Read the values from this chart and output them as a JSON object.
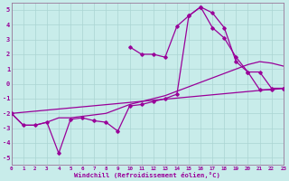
{
  "xlabel": "Windchill (Refroidissement éolien,°C)",
  "background_color": "#c8ecea",
  "grid_color": "#aad4d2",
  "line_color": "#990099",
  "spine_color": "#997799",
  "x_ticks": [
    0,
    1,
    2,
    3,
    4,
    5,
    6,
    7,
    8,
    9,
    10,
    11,
    12,
    13,
    14,
    15,
    16,
    17,
    18,
    19,
    20,
    21,
    22,
    23
  ],
  "y_ticks": [
    -5,
    -4,
    -3,
    -2,
    -1,
    0,
    1,
    2,
    3,
    4,
    5
  ],
  "xlim": [
    0,
    23
  ],
  "ylim": [
    -5.5,
    5.5
  ],
  "series": [
    {
      "x": [
        0,
        23
      ],
      "y": [
        -2.0,
        -0.3
      ],
      "marker": false,
      "linewidth": 0.9
    },
    {
      "x": [
        0,
        1,
        2,
        3,
        4,
        5,
        6,
        7,
        8,
        9,
        10,
        11,
        12,
        13,
        14,
        15,
        16,
        17,
        18,
        19,
        20,
        21,
        22,
        23
      ],
      "y": [
        -2.0,
        -2.8,
        -2.8,
        -2.6,
        -2.3,
        -2.3,
        -2.2,
        -2.1,
        -2.0,
        -1.7,
        -1.4,
        -1.2,
        -1.0,
        -0.8,
        -0.5,
        -0.2,
        0.1,
        0.4,
        0.7,
        1.0,
        1.3,
        1.5,
        1.4,
        1.2
      ],
      "marker": false,
      "linewidth": 0.9
    },
    {
      "x": [
        0,
        1,
        2,
        3,
        4,
        5,
        6,
        7,
        8,
        9,
        10,
        11,
        12,
        13,
        14,
        15,
        16,
        17,
        18,
        19,
        20,
        21,
        22,
        23
      ],
      "y": [
        -2.0,
        -2.8,
        -2.8,
        -2.6,
        -4.7,
        -2.4,
        -2.3,
        -2.5,
        -2.6,
        -3.2,
        -1.5,
        -1.4,
        -1.2,
        -1.0,
        -0.7,
        4.6,
        5.2,
        4.8,
        3.8,
        1.5,
        0.8,
        0.8,
        -0.3,
        -0.3
      ],
      "marker": true,
      "linewidth": 0.9
    },
    {
      "x": [
        10,
        11,
        12,
        13,
        14,
        15,
        16,
        17,
        18,
        19,
        20,
        21,
        22,
        23
      ],
      "y": [
        2.5,
        2.0,
        2.0,
        1.8,
        3.9,
        4.6,
        5.2,
        3.8,
        3.1,
        1.8,
        0.8,
        -0.4,
        -0.4,
        -0.3
      ],
      "marker": true,
      "linewidth": 0.9
    }
  ]
}
